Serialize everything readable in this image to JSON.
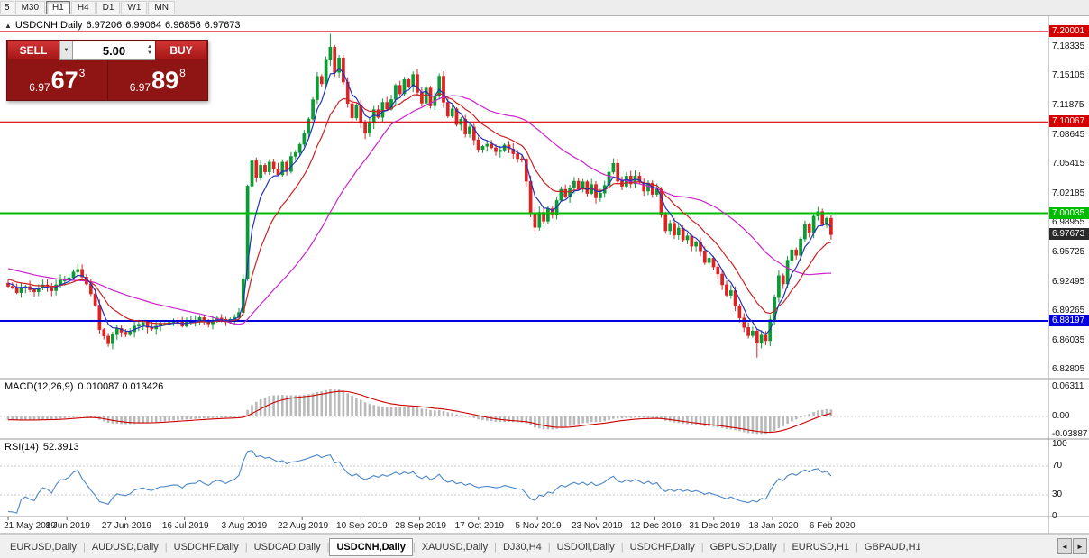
{
  "toolbar": {
    "timeframes": [
      "5",
      "M30",
      "H1",
      "H4",
      "D1",
      "W1",
      "MN"
    ],
    "active": "H1"
  },
  "chart": {
    "header": {
      "toggle_icon": "▲",
      "symbol": "USDCNH,Daily",
      "open": "6.97206",
      "high": "6.99064",
      "low": "6.96856",
      "close": "6.97673"
    },
    "y_axis": [
      "7.18335",
      "7.15105",
      "7.11875",
      "7.08645",
      "7.05415",
      "7.02185",
      "6.98955",
      "6.95725",
      "6.92495",
      "6.89265",
      "6.86035",
      "6.82805"
    ],
    "x_axis": [
      "21 May 2019",
      "8 Jun 2019",
      "27 Jun 2019",
      "16 Jul 2019",
      "3 Aug 2019",
      "22 Aug 2019",
      "10 Sep 2019",
      "28 Sep 2019",
      "17 Oct 2019",
      "5 Nov 2019",
      "23 Nov 2019",
      "12 Dec 2019",
      "31 Dec 2019",
      "18 Jan 2020",
      "6 Feb 2020"
    ],
    "hlines": [
      {
        "price": 7.20001,
        "label": "7.20001",
        "color": "#d40000",
        "width": 1.2
      },
      {
        "price": 7.10067,
        "label": "7.10067",
        "color": "#d40000",
        "width": 1.2
      },
      {
        "price": 7.00035,
        "label": "7.00035",
        "color": "#00bb00",
        "width": 2
      },
      {
        "price": 6.88197,
        "label": "6.88197",
        "color": "#0000dd",
        "width": 2
      }
    ],
    "current_price": {
      "value": 6.97673,
      "label": "6.97673",
      "color": "#2a2a2a"
    },
    "candle_close_anchors": [
      [
        0,
        6.92
      ],
      [
        2,
        6.914
      ],
      [
        4,
        6.919
      ],
      [
        6,
        6.912
      ],
      [
        8,
        6.922
      ],
      [
        10,
        6.917
      ],
      [
        12,
        6.926
      ],
      [
        14,
        6.931
      ],
      [
        16,
        6.937
      ],
      [
        18,
        6.921
      ],
      [
        20,
        6.899
      ],
      [
        21,
        6.871
      ],
      [
        23,
        6.858
      ],
      [
        25,
        6.873
      ],
      [
        27,
        6.866
      ],
      [
        29,
        6.877
      ],
      [
        31,
        6.881
      ],
      [
        33,
        6.872
      ],
      [
        35,
        6.878
      ],
      [
        38,
        6.883
      ],
      [
        40,
        6.876
      ],
      [
        42,
        6.882
      ],
      [
        44,
        6.886
      ],
      [
        46,
        6.879
      ],
      [
        48,
        6.884
      ],
      [
        50,
        6.88
      ],
      [
        52,
        6.886
      ],
      [
        53,
        6.891
      ],
      [
        54,
        6.929
      ],
      [
        55,
        7.032
      ],
      [
        56,
        7.056
      ],
      [
        57,
        7.041
      ],
      [
        58,
        7.053
      ],
      [
        59,
        7.046
      ],
      [
        60,
        7.058
      ],
      [
        61,
        7.05
      ],
      [
        62,
        7.042
      ],
      [
        63,
        7.056
      ],
      [
        64,
        7.048
      ],
      [
        65,
        7.061
      ],
      [
        66,
        7.067
      ],
      [
        67,
        7.077
      ],
      [
        68,
        7.087
      ],
      [
        69,
        7.103
      ],
      [
        70,
        7.127
      ],
      [
        71,
        7.151
      ],
      [
        72,
        7.141
      ],
      [
        73,
        7.169
      ],
      [
        74,
        7.184
      ],
      [
        75,
        7.157
      ],
      [
        76,
        7.173
      ],
      [
        77,
        7.143
      ],
      [
        78,
        7.121
      ],
      [
        79,
        7.107
      ],
      [
        80,
        7.119
      ],
      [
        81,
        7.099
      ],
      [
        82,
        7.087
      ],
      [
        83,
        7.101
      ],
      [
        84,
        7.113
      ],
      [
        85,
        7.105
      ],
      [
        86,
        7.121
      ],
      [
        87,
        7.113
      ],
      [
        88,
        7.127
      ],
      [
        89,
        7.141
      ],
      [
        90,
        7.133
      ],
      [
        91,
        7.147
      ],
      [
        92,
        7.139
      ],
      [
        93,
        7.151
      ],
      [
        94,
        7.132
      ],
      [
        95,
        7.123
      ],
      [
        96,
        7.137
      ],
      [
        97,
        7.119
      ],
      [
        98,
        7.131
      ],
      [
        99,
        7.151
      ],
      [
        100,
        7.122
      ],
      [
        101,
        7.107
      ],
      [
        102,
        7.114
      ],
      [
        103,
        7.097
      ],
      [
        104,
        7.103
      ],
      [
        105,
        7.087
      ],
      [
        106,
        7.094
      ],
      [
        107,
        7.08
      ],
      [
        108,
        7.072
      ],
      [
        110,
        7.078
      ],
      [
        112,
        7.069
      ],
      [
        114,
        7.074
      ],
      [
        116,
        7.065
      ],
      [
        118,
        7.059
      ],
      [
        119,
        7.037
      ],
      [
        120,
        7.0
      ],
      [
        121,
        6.985
      ],
      [
        122,
        7.001
      ],
      [
        123,
        6.993
      ],
      [
        124,
        7.007
      ],
      [
        125,
        6.999
      ],
      [
        126,
        7.013
      ],
      [
        127,
        7.025
      ],
      [
        128,
        7.017
      ],
      [
        129,
        7.029
      ],
      [
        130,
        7.037
      ],
      [
        131,
        7.027
      ],
      [
        132,
        7.033
      ],
      [
        133,
        7.022
      ],
      [
        134,
        7.03
      ],
      [
        135,
        7.017
      ],
      [
        136,
        7.024
      ],
      [
        137,
        7.032
      ],
      [
        138,
        7.045
      ],
      [
        139,
        7.057
      ],
      [
        140,
        7.037
      ],
      [
        141,
        7.029
      ],
      [
        142,
        7.04
      ],
      [
        143,
        7.031
      ],
      [
        144,
        7.042
      ],
      [
        145,
        7.034
      ],
      [
        146,
        7.023
      ],
      [
        147,
        7.032
      ],
      [
        148,
        7.019
      ],
      [
        149,
        7.027
      ],
      [
        150,
        6.997
      ],
      [
        151,
        6.982
      ],
      [
        152,
        6.99
      ],
      [
        153,
        6.977
      ],
      [
        154,
        6.984
      ],
      [
        155,
        6.972
      ],
      [
        156,
        6.977
      ],
      [
        157,
        6.964
      ],
      [
        158,
        6.97
      ],
      [
        159,
        6.957
      ],
      [
        160,
        6.947
      ],
      [
        161,
        6.952
      ],
      [
        162,
        6.941
      ],
      [
        163,
        6.932
      ],
      [
        164,
        6.922
      ],
      [
        165,
        6.91
      ],
      [
        166,
        6.917
      ],
      [
        167,
        6.897
      ],
      [
        168,
        6.887
      ],
      [
        169,
        6.874
      ],
      [
        170,
        6.864
      ],
      [
        171,
        6.872
      ],
      [
        172,
        6.857
      ],
      [
        173,
        6.867
      ],
      [
        174,
        6.86
      ],
      [
        175,
        6.883
      ],
      [
        176,
        6.907
      ],
      [
        177,
        6.932
      ],
      [
        178,
        6.922
      ],
      [
        179,
        6.947
      ],
      [
        180,
        6.962
      ],
      [
        181,
        6.954
      ],
      [
        182,
        6.972
      ],
      [
        183,
        6.987
      ],
      [
        184,
        6.98
      ],
      [
        185,
        6.997
      ],
      [
        186,
        7.002
      ],
      [
        187,
        6.987
      ],
      [
        188,
        6.994
      ],
      [
        189,
        6.97673
      ]
    ]
  },
  "macd": {
    "name": "MACD(12,26,9)",
    "values": "0.010087 0.013426",
    "axis": [
      {
        "value": 0.06311,
        "label": "0.06311"
      },
      {
        "value": 0,
        "label": "0.00"
      },
      {
        "value": -0.03887,
        "label": "-0.03887"
      }
    ]
  },
  "rsi": {
    "name": "RSI(14)",
    "value": "52.3913",
    "axis": [
      {
        "value": 100,
        "label": "100"
      },
      {
        "value": 70,
        "label": "70"
      },
      {
        "value": 30,
        "label": "30"
      },
      {
        "value": 0,
        "label": "0"
      }
    ]
  },
  "trade_panel": {
    "sell_label": "SELL",
    "buy_label": "BUY",
    "volume": "5.00",
    "dropdown_icon": "▼",
    "spin_up_icon": "▲",
    "spin_down_icon": "▼",
    "sell_price": {
      "base": "6.97",
      "big": "67",
      "sup": "3"
    },
    "buy_price": {
      "base": "6.97",
      "big": "89",
      "sup": "8"
    }
  },
  "tabs": {
    "items": [
      "EURUSD,Daily",
      "AUDUSD,Daily",
      "USDCHF,Daily",
      "USDCAD,Daily",
      "USDCNH,Daily",
      "XAUUSD,Daily",
      "DJ30,H4",
      "USDOil,Daily",
      "USDCHF,Daily",
      "GBPUSD,Daily",
      "EURUSD,H1",
      "GBPAUD,H1"
    ],
    "active_index": 4,
    "separator": "|",
    "left_icon": "◄",
    "right_icon": "►"
  },
  "colors": {
    "candle_up": "#0b9a33",
    "candle_down": "#dd2222",
    "ma_fast": "#2233bb",
    "ma_mid": "#cc2222",
    "ma_slow": "#cc22cc",
    "macd_hist": "#b9b9b9",
    "macd_signal": "#cc0000",
    "rsi": "#4a86c8",
    "separator": "#9a9a9a"
  }
}
